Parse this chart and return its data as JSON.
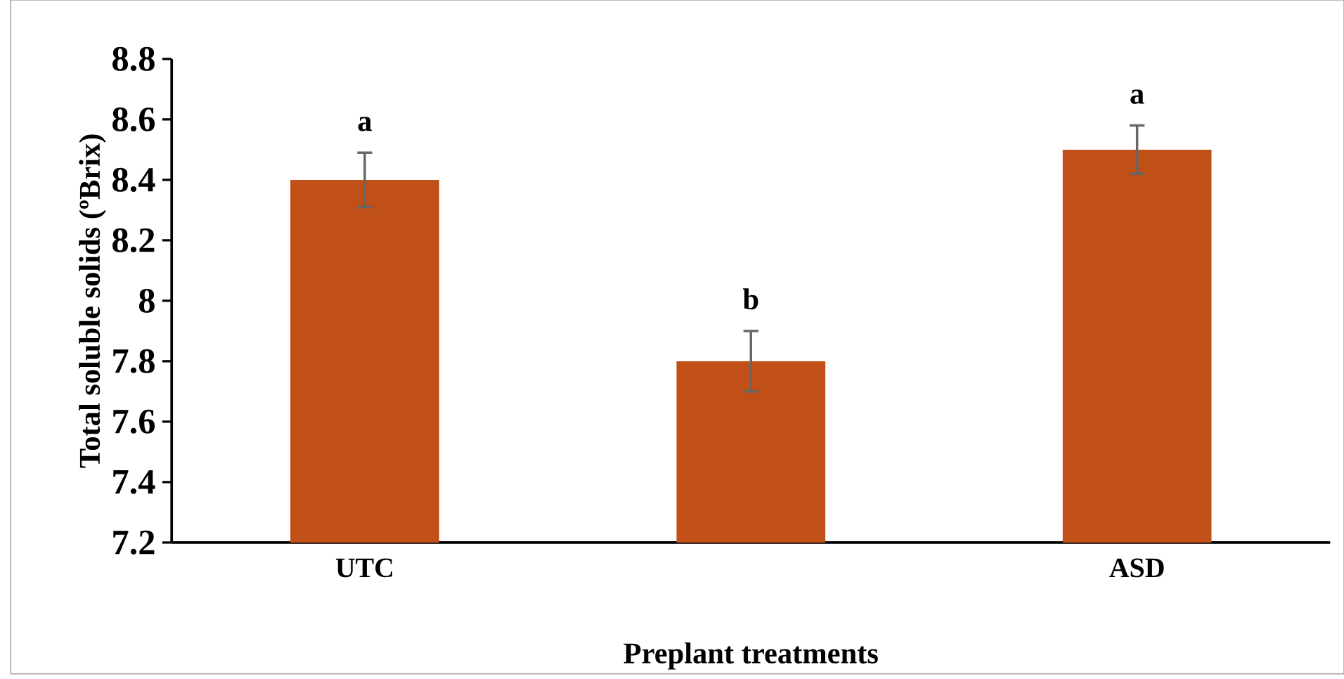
{
  "chart_data": {
    "type": "bar",
    "xlabel": "Preplant treatments",
    "ylabel": "Total soluble solids (ºBrix)",
    "categories": [
      "UTC",
      null,
      "ASD"
    ],
    "values": [
      8.4,
      7.8,
      8.5
    ],
    "errors": [
      0.09,
      0.1,
      0.08
    ],
    "value_labels": [
      "a",
      "b",
      "a"
    ],
    "color": "#c05017",
    "ylim": [
      7.2,
      8.8
    ],
    "yticks": [
      7.2,
      7.4,
      7.6,
      7.8,
      8,
      8.2,
      8.4,
      8.6,
      8.8
    ],
    "grid": false
  }
}
